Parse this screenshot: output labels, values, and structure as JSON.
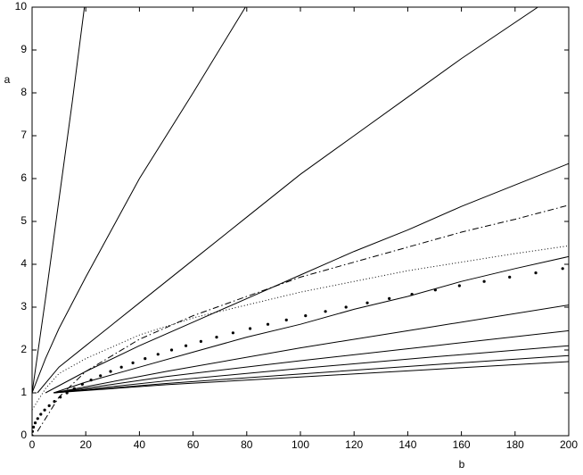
{
  "chart_data": {
    "type": "line",
    "xlabel": "b",
    "ylabel": "a",
    "xlim": [
      0,
      200
    ],
    "ylim": [
      0,
      10
    ],
    "xticks": [
      0,
      20,
      40,
      60,
      80,
      100,
      120,
      140,
      160,
      180,
      200
    ],
    "yticks": [
      0,
      1,
      2,
      3,
      4,
      5,
      6,
      7,
      8,
      9,
      10
    ],
    "grid": false,
    "series": [
      {
        "style": "solid",
        "color": "#000000",
        "x": [
          0,
          5,
          10,
          15,
          19.5
        ],
        "values": [
          1,
          3.2,
          5.5,
          7.8,
          10
        ]
      },
      {
        "style": "solid",
        "color": "#000000",
        "x": [
          0,
          5,
          10,
          20,
          40,
          60,
          79.5
        ],
        "values": [
          1,
          1.8,
          2.5,
          3.7,
          6.0,
          8.0,
          10
        ]
      },
      {
        "style": "solid",
        "color": "#000000",
        "x": [
          2,
          10,
          20,
          40,
          60,
          80,
          100,
          120,
          140,
          160,
          188.5
        ],
        "values": [
          1,
          1.6,
          2.1,
          3.1,
          4.1,
          5.1,
          6.1,
          7.0,
          7.9,
          8.8,
          10
        ]
      },
      {
        "style": "solid",
        "color": "#000000",
        "x": [
          5,
          20,
          40,
          60,
          80,
          100,
          120,
          140,
          160,
          180,
          200
        ],
        "values": [
          1,
          1.5,
          2.1,
          2.65,
          3.2,
          3.75,
          4.3,
          4.8,
          5.35,
          5.85,
          6.35
        ]
      },
      {
        "style": "solid",
        "color": "#000000",
        "x": [
          8,
          20,
          40,
          60,
          80,
          100,
          120,
          140,
          160,
          180,
          200
        ],
        "values": [
          1,
          1.25,
          1.6,
          1.95,
          2.3,
          2.6,
          2.95,
          3.25,
          3.6,
          3.9,
          4.18
        ]
      },
      {
        "style": "solid",
        "color": "#000000",
        "x": [
          8,
          50,
          100,
          150,
          200
        ],
        "values": [
          1,
          1.5,
          2.05,
          2.55,
          3.05
        ]
      },
      {
        "style": "solid",
        "color": "#000000",
        "x": [
          8,
          50,
          100,
          150,
          200
        ],
        "values": [
          1,
          1.38,
          1.75,
          2.1,
          2.45
        ]
      },
      {
        "style": "solid",
        "color": "#000000",
        "x": [
          8,
          50,
          100,
          150,
          200
        ],
        "values": [
          1,
          1.28,
          1.57,
          1.84,
          2.1
        ]
      },
      {
        "style": "solid",
        "color": "#000000",
        "x": [
          8,
          50,
          100,
          150,
          200
        ],
        "values": [
          1,
          1.22,
          1.44,
          1.66,
          1.87
        ]
      },
      {
        "style": "solid",
        "color": "#000000",
        "x": [
          8,
          50,
          100,
          150,
          200
        ],
        "values": [
          1,
          1.19,
          1.37,
          1.55,
          1.73
        ]
      },
      {
        "style": "dashdot",
        "color": "#000000",
        "x": [
          2,
          5,
          10,
          20,
          40,
          60,
          80,
          100,
          120,
          140,
          160,
          180,
          200
        ],
        "values": [
          0.1,
          0.4,
          0.9,
          1.5,
          2.25,
          2.8,
          3.25,
          3.7,
          4.05,
          4.4,
          4.75,
          5.05,
          5.38
        ]
      },
      {
        "style": "dotted",
        "color": "#000000",
        "x": [
          0,
          5,
          10,
          20,
          40,
          60,
          80,
          100,
          120,
          140,
          160,
          180,
          200
        ],
        "values": [
          0.6,
          1.1,
          1.45,
          1.8,
          2.35,
          2.75,
          3.05,
          3.35,
          3.6,
          3.85,
          4.05,
          4.25,
          4.43
        ]
      },
      {
        "style": "markers",
        "color": "#000000",
        "x": [
          0,
          0.13,
          0.52,
          1.17,
          2.08,
          3.25,
          4.68,
          6.37,
          8.32,
          10.53,
          13,
          15.73,
          18.72,
          21.97,
          25.48,
          29.25,
          33.28,
          37.57,
          42.12,
          46.93,
          52,
          57.33,
          62.92,
          68.77,
          74.88,
          81.25,
          87.88,
          94.77,
          101.92,
          109.33,
          117,
          124.93,
          133.12,
          141.57,
          150.28,
          159.25,
          168.48,
          177.97,
          187.72,
          197.73
        ],
        "values": [
          0,
          0.1,
          0.2,
          0.3,
          0.4,
          0.5,
          0.6,
          0.7,
          0.8,
          0.9,
          1.0,
          1.1,
          1.2,
          1.3,
          1.4,
          1.5,
          1.6,
          1.7,
          1.8,
          1.9,
          2.0,
          2.1,
          2.2,
          2.3,
          2.4,
          2.5,
          2.6,
          2.7,
          2.8,
          2.9,
          3.0,
          3.1,
          3.2,
          3.3,
          3.4,
          3.5,
          3.6,
          3.7,
          3.8,
          3.9
        ]
      }
    ]
  }
}
